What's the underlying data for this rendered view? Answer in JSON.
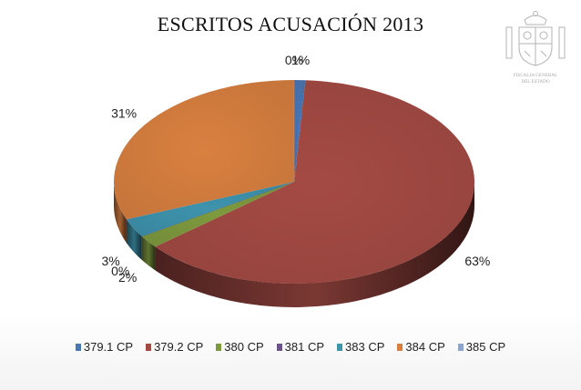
{
  "chart_data": {
    "type": "pie",
    "title": "ESCRITOS ACUSACIÓN 2013",
    "slices": [
      {
        "name": "379.1 CP",
        "value": 1,
        "label": "1%",
        "color": "#4a76b3"
      },
      {
        "name": "379.2 CP",
        "value": 63,
        "label": "63%",
        "color": "#a44a44"
      },
      {
        "name": "380 CP",
        "value": 2,
        "label": "2%",
        "color": "#7e9a3e"
      },
      {
        "name": "381 CP",
        "value": 0,
        "label": "0%",
        "color": "#6a548a"
      },
      {
        "name": "383 CP",
        "value": 3,
        "label": "3%",
        "color": "#3e93ad"
      },
      {
        "name": "384 CP",
        "value": 31,
        "label": "31%",
        "color": "#d98040"
      },
      {
        "name": "385 CP",
        "value": 0,
        "label": "0%",
        "color": "#8ea6cf"
      }
    ],
    "legend_position": "bottom",
    "style": "3d"
  },
  "emblem": {
    "icon": "coat-of-arms-icon",
    "text_line1": "FISCALIA GENERAL",
    "text_line2": "DEL ESTADO"
  }
}
